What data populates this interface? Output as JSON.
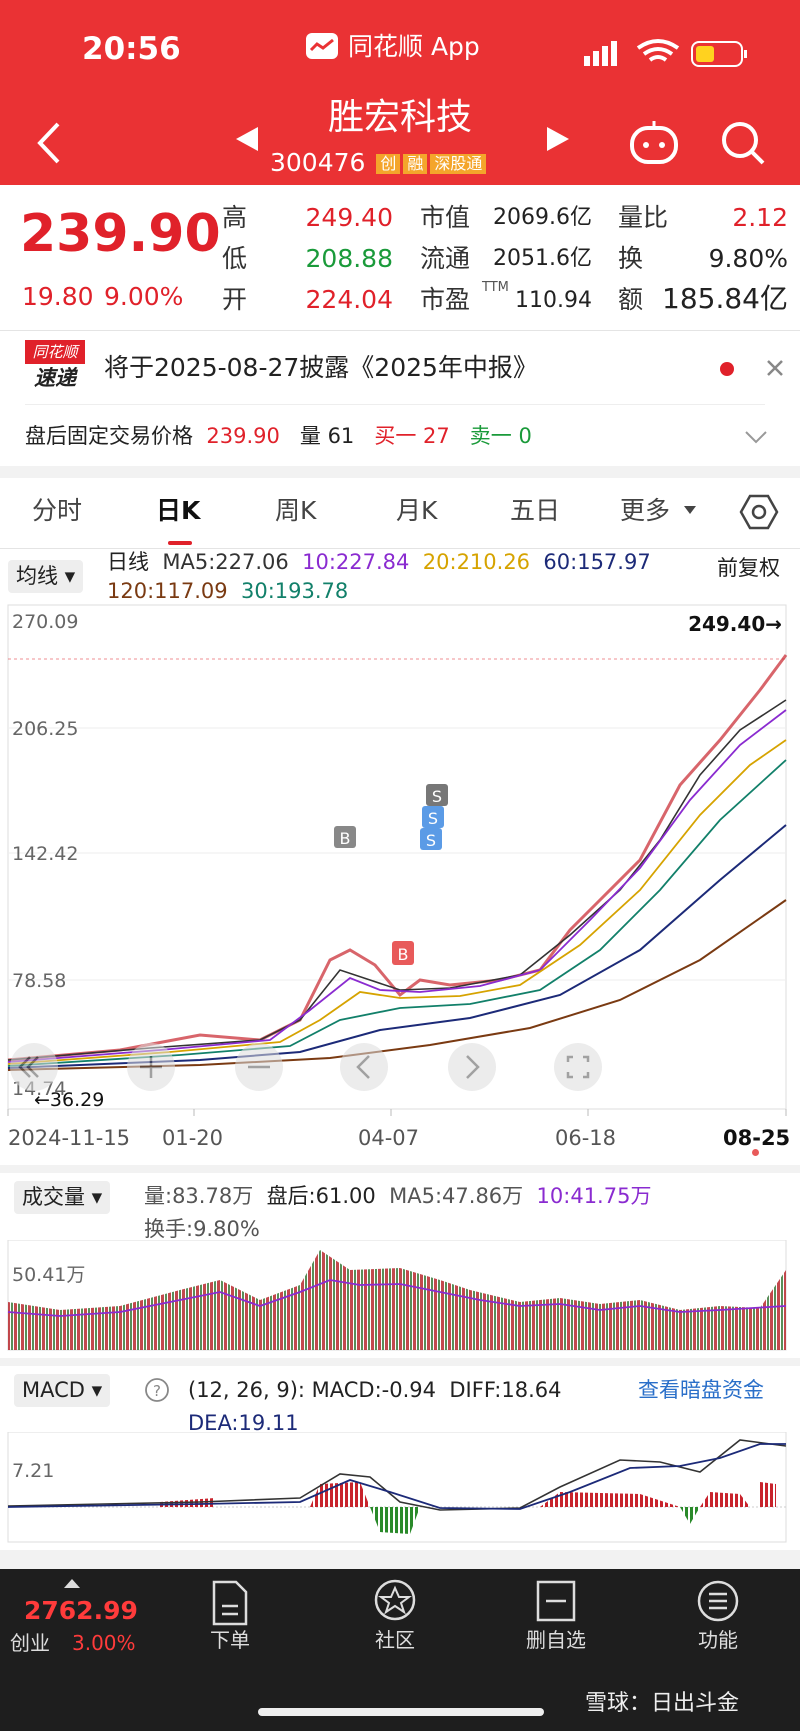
{
  "status_bar": {
    "time": "20:56",
    "app": "同花顺 App"
  },
  "header": {
    "title": "胜宏科技",
    "code": "300476",
    "tags": [
      "创",
      "融",
      "深股通"
    ]
  },
  "quote": {
    "price": "239.90",
    "change": "19.80",
    "change_pct": "9.00%",
    "ttm": "TTM",
    "fields": [
      [
        "高",
        "249.40"
      ],
      [
        "低",
        "208.88"
      ],
      [
        "开",
        "224.04"
      ],
      [
        "市值",
        "2069.6亿"
      ],
      [
        "流通",
        "2051.6亿"
      ],
      [
        "市盈",
        "110.94"
      ],
      [
        "量比",
        "2.12"
      ],
      [
        "换",
        "9.80%"
      ],
      [
        "额",
        "185.84亿"
      ]
    ]
  },
  "notice": {
    "logo_top": "同花顺",
    "logo_bottom": "速递",
    "text": "将于2025-08-27披露《2025年中报》"
  },
  "after_hours": {
    "label": "盘后固定交易价格",
    "price": "239.90",
    "vol_label": "量",
    "vol": "61",
    "buy_label": "买一",
    "buy": "27",
    "sell_label": "卖一",
    "sell": "0"
  },
  "tabs": [
    "分时",
    "日K",
    "周K",
    "月K",
    "五日",
    "更多"
  ],
  "ma": {
    "selector": "均线",
    "type": "日线",
    "items": [
      "MA5:227.06",
      "10:227.84",
      "20:210.26",
      "60:157.97",
      "120:117.09",
      "30:193.78"
    ],
    "adjust": "前复权"
  },
  "price_chart": {
    "yticks": [
      "270.09",
      "206.25",
      "142.42",
      "78.58",
      "14.74"
    ],
    "high_label": "249.40→",
    "low_label": "←36.29",
    "markers": [
      "B",
      "B",
      "S",
      "S",
      "S"
    ],
    "dates": [
      "2024-11-15",
      "01-20",
      "04-07",
      "06-18",
      "08-25"
    ]
  },
  "volume": {
    "selector": "成交量",
    "items": [
      "量:83.78万",
      "盘后:61.00",
      "MA5:47.86万",
      "10:41.75万"
    ],
    "turnover": "换手:9.80%",
    "ytick": "50.41万"
  },
  "macd": {
    "selector": "MACD",
    "params": "(12, 26, 9):",
    "items": [
      "MACD:-0.94",
      "DIFF:18.64"
    ],
    "link": "查看暗盘资金",
    "dea": "DEA:19.11",
    "ytick": "7.21"
  },
  "nav": {
    "index_value": "2762.99",
    "index_name": "创业",
    "index_pct": "3.00%",
    "items": [
      "下单",
      "社区",
      "删自选",
      "功能"
    ]
  },
  "watermark": "雪球：日出斗金"
}
